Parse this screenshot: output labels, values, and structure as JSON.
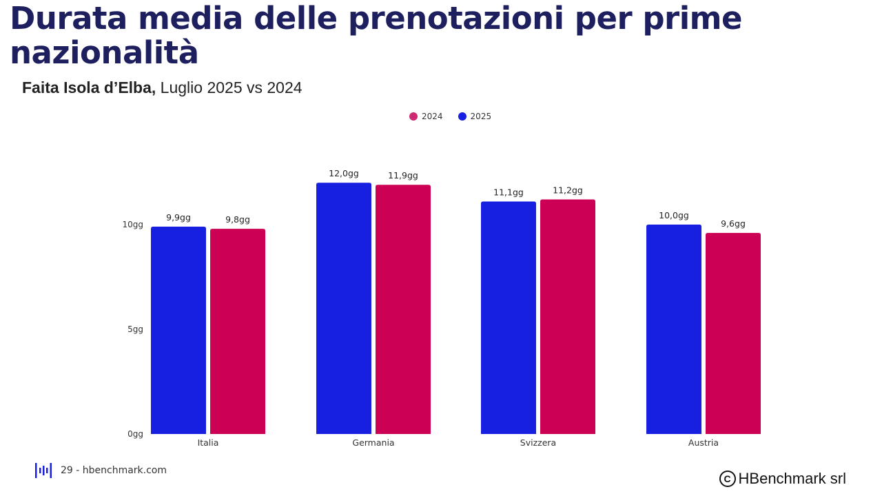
{
  "header": {
    "title": "Durata media delle prenotazioni per prime nazionalità",
    "subtitle_bold": "Faita Isola d’Elba,",
    "subtitle_rest": " Luglio 2025 vs 2024"
  },
  "colors": {
    "c2025": "#1720e0",
    "c2024": "#cc0055"
  },
  "legend": [
    {
      "label": "2024",
      "color": "#cc2a70"
    },
    {
      "label": "2025",
      "color": "#1720e0"
    }
  ],
  "chart_data": {
    "type": "bar",
    "title": "Durata media delle prenotazioni per prime nazionalità",
    "categories": [
      "Italia",
      "Germania",
      "Svizzera",
      "Austria"
    ],
    "series": [
      {
        "name": "2025",
        "values": [
          9.9,
          12.0,
          11.1,
          10.0
        ],
        "labels": [
          "9,9gg",
          "12,0gg",
          "11,1gg",
          "10,0gg"
        ]
      },
      {
        "name": "2024",
        "values": [
          9.8,
          11.9,
          11.2,
          9.6
        ],
        "labels": [
          "9,8gg",
          "11,9gg",
          "11,2gg",
          "9,6gg"
        ]
      }
    ],
    "yticks": [
      {
        "value": 0,
        "label": "0gg"
      },
      {
        "value": 5,
        "label": "5gg"
      },
      {
        "value": 10,
        "label": "10gg"
      }
    ],
    "ylim": [
      0,
      12
    ],
    "xlabel": "",
    "ylabel": "",
    "legend_position": "top-center",
    "grid": false
  },
  "footer": {
    "page_text": "29 - hbenchmark.com",
    "copyright_symbol": "C",
    "copyright_text": "HBenchmark srl"
  }
}
